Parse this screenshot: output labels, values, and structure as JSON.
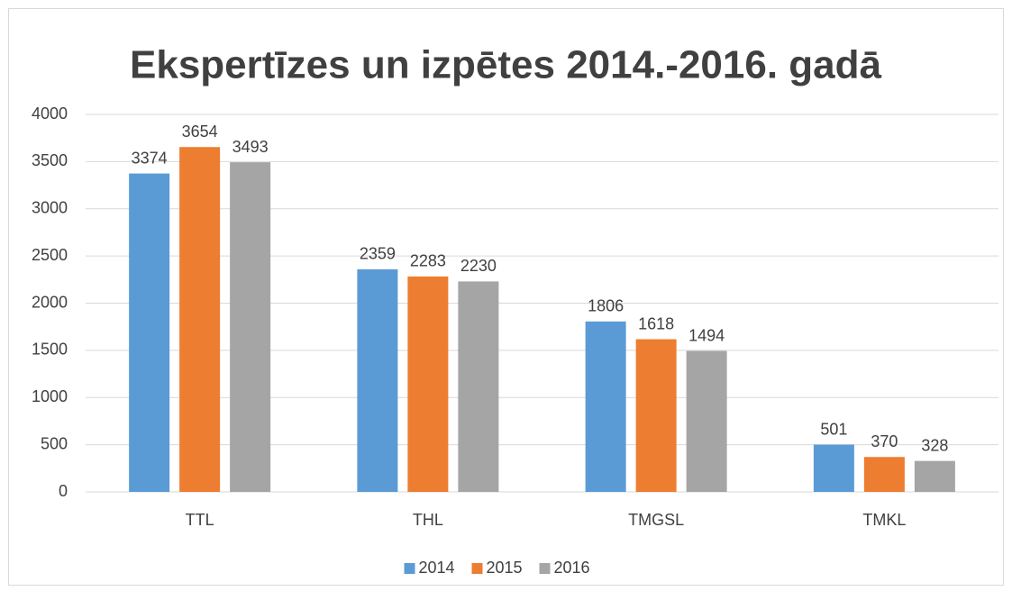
{
  "chart_data": {
    "type": "bar",
    "title": "Ekspertīzes un izpētes 2014.-2016. gadā",
    "categories": [
      "TTL",
      "THL",
      "TMGSL",
      "TMKL"
    ],
    "series": [
      {
        "name": "2014",
        "color": "#5b9bd5",
        "values": [
          3374,
          2359,
          1806,
          501
        ]
      },
      {
        "name": "2015",
        "color": "#ed7d31",
        "values": [
          3654,
          2283,
          1618,
          370
        ]
      },
      {
        "name": "2016",
        "color": "#a5a5a5",
        "values": [
          3493,
          2230,
          1494,
          328
        ]
      }
    ],
    "ylim": [
      0,
      4000
    ],
    "yticks": [
      0,
      500,
      1000,
      1500,
      2000,
      2500,
      3000,
      3500,
      4000
    ],
    "grid": true,
    "legend": "bottom"
  }
}
